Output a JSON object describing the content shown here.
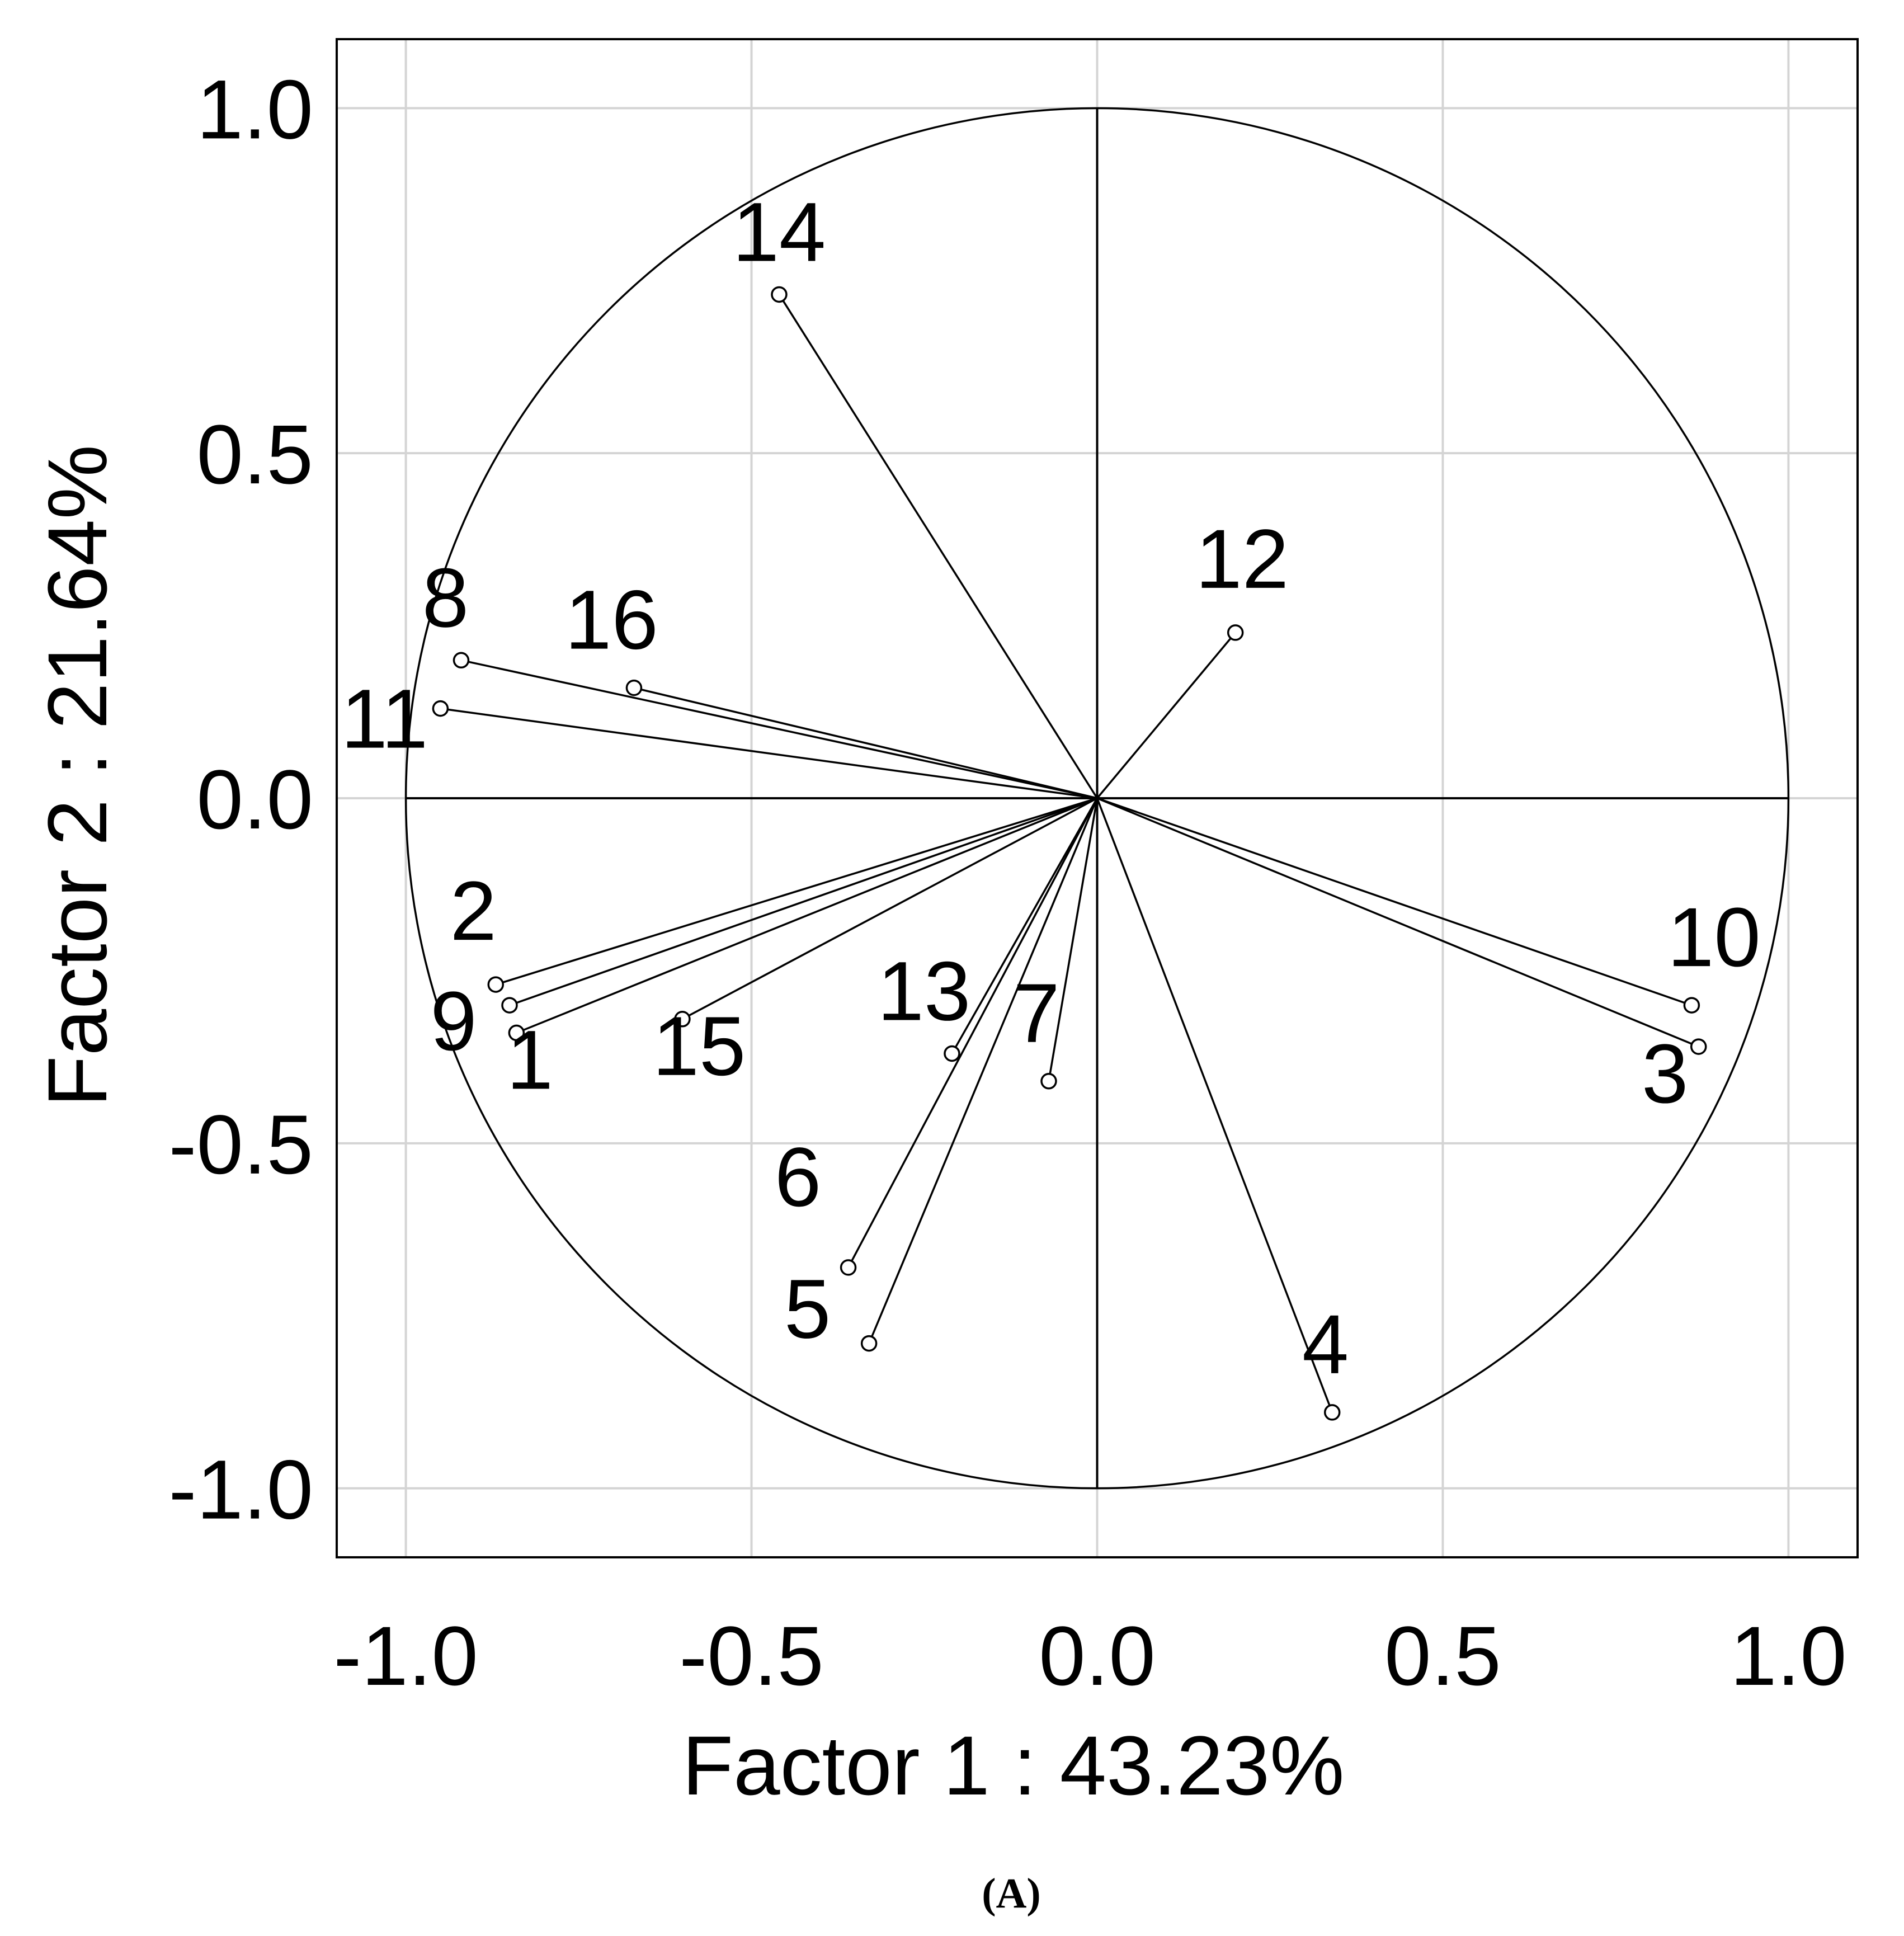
{
  "chart_data": {
    "type": "scatter",
    "subtype": "pca-correlation-circle",
    "xlabel": "Factor 1 : 43.23%",
    "ylabel": "Factor 2 : 21.64%",
    "panel_label": "(A)",
    "xlim": [
      -1.1,
      1.1
    ],
    "ylim": [
      -1.1,
      1.1
    ],
    "xticks": [
      -1.0,
      -0.5,
      0.0,
      0.5,
      1.0
    ],
    "yticks": [
      -1.0,
      -0.5,
      0.0,
      0.5,
      1.0
    ],
    "xtick_labels": [
      "-1.0",
      "-0.5",
      "0.0",
      "0.5",
      "1.0"
    ],
    "ytick_labels": [
      "1.0",
      "0.5",
      "0.0",
      "-0.5",
      "-1.0"
    ],
    "grid": true,
    "unit_circle": true,
    "points": [
      {
        "label": "1",
        "x": -0.84,
        "y": -0.34
      },
      {
        "label": "2",
        "x": -0.87,
        "y": -0.27
      },
      {
        "label": "3",
        "x": 0.87,
        "y": -0.36
      },
      {
        "label": "4",
        "x": 0.34,
        "y": -0.89
      },
      {
        "label": "5",
        "x": -0.33,
        "y": -0.79
      },
      {
        "label": "6",
        "x": -0.36,
        "y": -0.68
      },
      {
        "label": "7",
        "x": -0.07,
        "y": -0.41
      },
      {
        "label": "8",
        "x": -0.92,
        "y": 0.2
      },
      {
        "label": "9",
        "x": -0.85,
        "y": -0.3
      },
      {
        "label": "10",
        "x": 0.86,
        "y": -0.3
      },
      {
        "label": "11",
        "x": -0.95,
        "y": 0.13
      },
      {
        "label": "12",
        "x": 0.2,
        "y": 0.24
      },
      {
        "label": "13",
        "x": -0.21,
        "y": -0.37
      },
      {
        "label": "14",
        "x": -0.46,
        "y": 0.73
      },
      {
        "label": "15",
        "x": -0.6,
        "y": -0.32
      },
      {
        "label": "16",
        "x": -0.67,
        "y": 0.16
      }
    ]
  }
}
